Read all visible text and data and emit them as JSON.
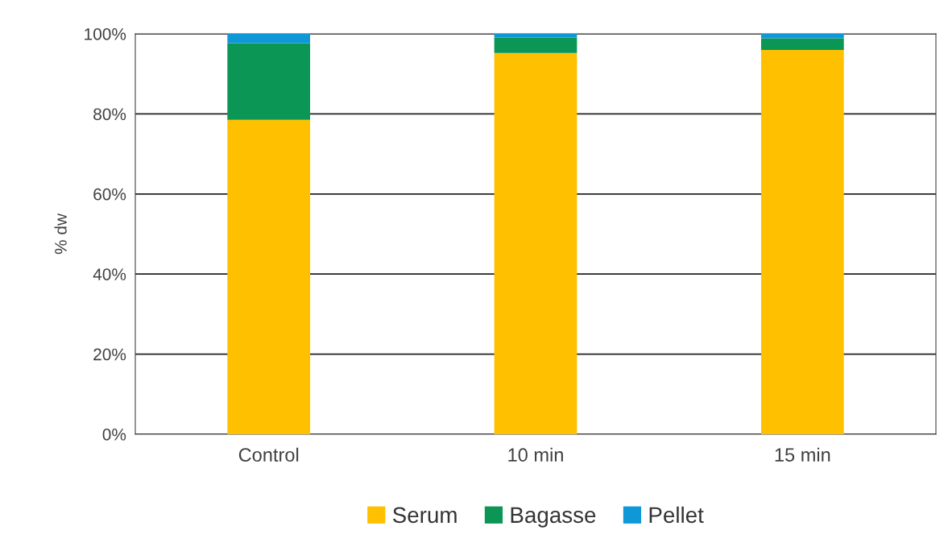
{
  "chart_data": {
    "type": "bar",
    "stacked": true,
    "ylabel": "% dw",
    "categories": [
      "Control",
      "10 min",
      "15 min"
    ],
    "series": [
      {
        "name": "Serum",
        "color": "#ffc000",
        "values": [
          78.5,
          95.2,
          96.0
        ]
      },
      {
        "name": "Bagasse",
        "color": "#0b9655",
        "values": [
          19.2,
          3.9,
          2.9
        ]
      },
      {
        "name": "Pellet",
        "color": "#0f98d8",
        "values": [
          2.3,
          0.9,
          1.1
        ]
      }
    ],
    "ylim": [
      0,
      100
    ],
    "yticks": [
      {
        "value": 0,
        "label": "0%"
      },
      {
        "value": 20,
        "label": "20%"
      },
      {
        "value": 40,
        "label": "40%"
      },
      {
        "value": 60,
        "label": "60%"
      },
      {
        "value": 80,
        "label": "80%"
      },
      {
        "value": 100,
        "label": "100%"
      }
    ],
    "grid": "y",
    "legend": "bottom"
  }
}
